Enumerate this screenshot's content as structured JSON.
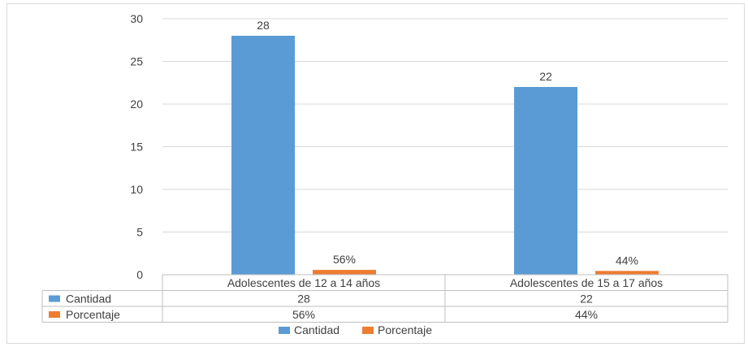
{
  "chart_data": {
    "type": "bar",
    "categories": [
      "Adolescentes de 12 a 14 años",
      "Adolescentes de 15 a 17  años"
    ],
    "series": [
      {
        "name": "Cantidad",
        "values": [
          28,
          22
        ],
        "labels": [
          "28",
          "22"
        ],
        "color": "#5b9bd5"
      },
      {
        "name": "Porcentaje",
        "values": [
          0.56,
          0.44
        ],
        "labels": [
          "56%",
          "44%"
        ],
        "color": "#ed7d31"
      }
    ],
    "ylim": [
      0,
      30
    ],
    "yticks": [
      0,
      5,
      10,
      15,
      20,
      25,
      30
    ],
    "grid": true,
    "data_table": true,
    "legend_position": "bottom"
  }
}
